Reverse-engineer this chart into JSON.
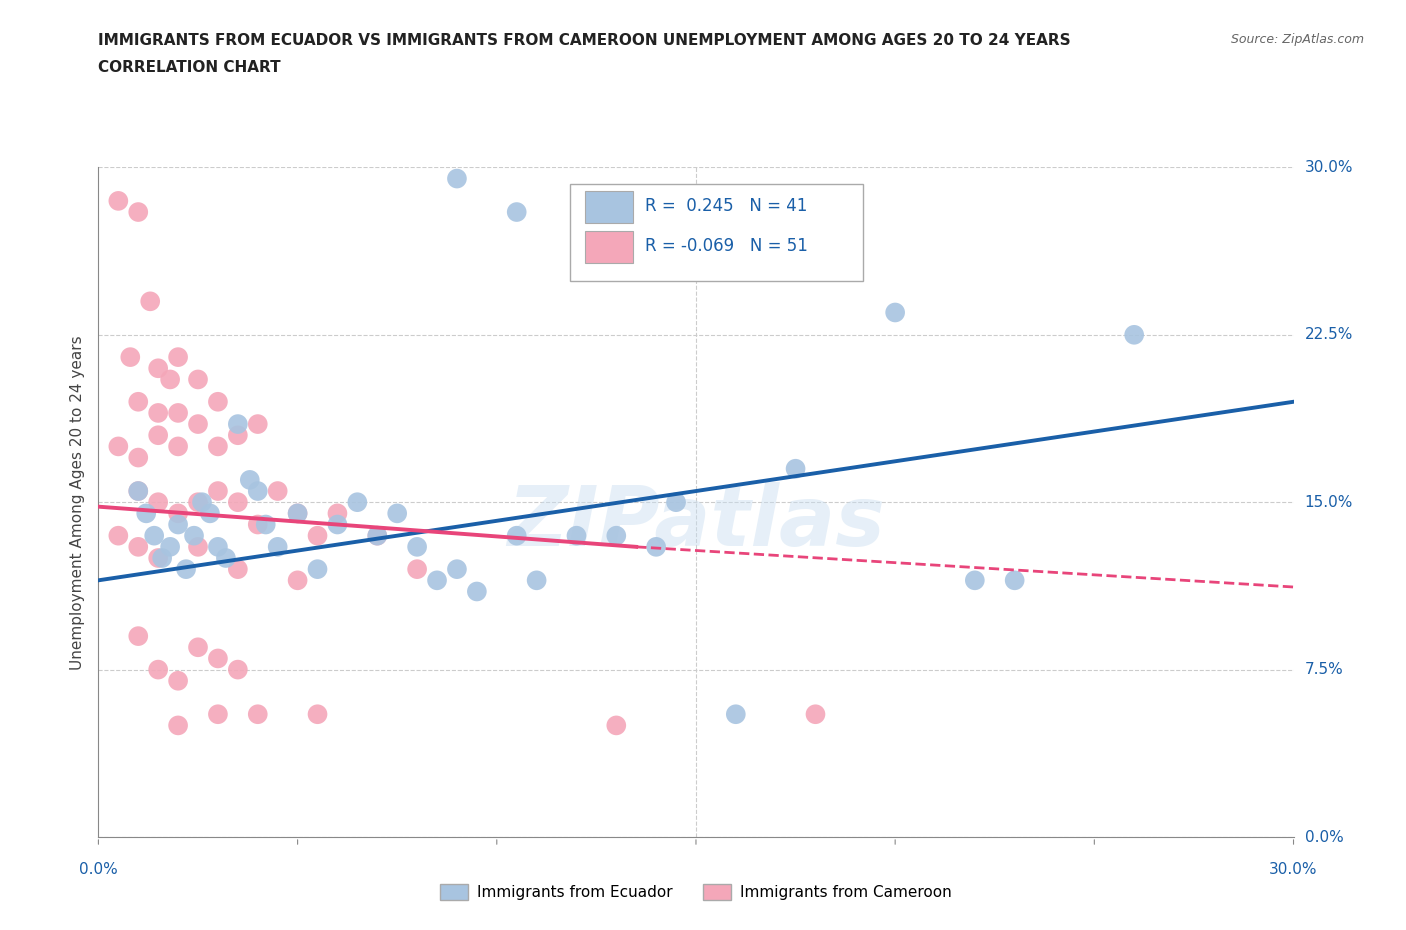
{
  "title_line1": "IMMIGRANTS FROM ECUADOR VS IMMIGRANTS FROM CAMEROON UNEMPLOYMENT AMONG AGES 20 TO 24 YEARS",
  "title_line2": "CORRELATION CHART",
  "source": "Source: ZipAtlas.com",
  "ylabel": "Unemployment Among Ages 20 to 24 years",
  "ytick_values": [
    0.0,
    7.5,
    15.0,
    22.5,
    30.0
  ],
  "xlim": [
    0.0,
    30.0
  ],
  "ylim": [
    0.0,
    30.0
  ],
  "watermark": "ZIPatlas",
  "legend_R_ecuador": "0.245",
  "legend_N_ecuador": "41",
  "legend_R_cameroon": "-0.069",
  "legend_N_cameroon": "51",
  "ecuador_color": "#a8c4e0",
  "cameroon_color": "#f4a7b9",
  "ecuador_line_color": "#1a5fa8",
  "cameroon_line_color": "#e8457a",
  "ecuador_scatter": [
    [
      1.0,
      15.5
    ],
    [
      1.2,
      14.5
    ],
    [
      1.4,
      13.5
    ],
    [
      1.6,
      12.5
    ],
    [
      1.8,
      13.0
    ],
    [
      2.0,
      14.0
    ],
    [
      2.2,
      12.0
    ],
    [
      2.4,
      13.5
    ],
    [
      2.6,
      15.0
    ],
    [
      2.8,
      14.5
    ],
    [
      3.0,
      13.0
    ],
    [
      3.2,
      12.5
    ],
    [
      3.5,
      18.5
    ],
    [
      3.8,
      16.0
    ],
    [
      4.0,
      15.5
    ],
    [
      4.2,
      14.0
    ],
    [
      4.5,
      13.0
    ],
    [
      5.0,
      14.5
    ],
    [
      5.5,
      12.0
    ],
    [
      6.0,
      14.0
    ],
    [
      6.5,
      15.0
    ],
    [
      7.0,
      13.5
    ],
    [
      7.5,
      14.5
    ],
    [
      8.0,
      13.0
    ],
    [
      8.5,
      11.5
    ],
    [
      9.0,
      12.0
    ],
    [
      9.5,
      11.0
    ],
    [
      10.5,
      13.5
    ],
    [
      11.0,
      11.5
    ],
    [
      12.0,
      13.5
    ],
    [
      13.0,
      13.5
    ],
    [
      14.0,
      13.0
    ],
    [
      14.5,
      15.0
    ],
    [
      17.5,
      16.5
    ],
    [
      20.0,
      23.5
    ],
    [
      22.0,
      11.5
    ],
    [
      23.0,
      11.5
    ],
    [
      26.0,
      22.5
    ],
    [
      9.0,
      29.5
    ],
    [
      10.5,
      28.0
    ],
    [
      16.0,
      5.5
    ]
  ],
  "cameroon_scatter": [
    [
      0.5,
      28.5
    ],
    [
      1.0,
      28.0
    ],
    [
      1.3,
      24.0
    ],
    [
      0.8,
      21.5
    ],
    [
      1.5,
      21.0
    ],
    [
      1.8,
      20.5
    ],
    [
      2.0,
      21.5
    ],
    [
      2.5,
      20.5
    ],
    [
      1.0,
      19.5
    ],
    [
      1.5,
      19.0
    ],
    [
      2.0,
      19.0
    ],
    [
      2.5,
      18.5
    ],
    [
      3.0,
      19.5
    ],
    [
      0.5,
      17.5
    ],
    [
      1.0,
      17.0
    ],
    [
      1.5,
      18.0
    ],
    [
      2.0,
      17.5
    ],
    [
      3.0,
      17.5
    ],
    [
      3.5,
      18.0
    ],
    [
      4.0,
      18.5
    ],
    [
      1.0,
      15.5
    ],
    [
      1.5,
      15.0
    ],
    [
      2.0,
      14.5
    ],
    [
      2.5,
      15.0
    ],
    [
      3.0,
      15.5
    ],
    [
      3.5,
      15.0
    ],
    [
      4.0,
      14.0
    ],
    [
      4.5,
      15.5
    ],
    [
      5.0,
      14.5
    ],
    [
      5.5,
      13.5
    ],
    [
      6.0,
      14.5
    ],
    [
      7.0,
      13.5
    ],
    [
      0.5,
      13.5
    ],
    [
      1.0,
      13.0
    ],
    [
      1.5,
      12.5
    ],
    [
      2.5,
      13.0
    ],
    [
      3.5,
      12.0
    ],
    [
      5.0,
      11.5
    ],
    [
      8.0,
      12.0
    ],
    [
      1.0,
      9.0
    ],
    [
      2.5,
      8.5
    ],
    [
      3.0,
      8.0
    ],
    [
      1.5,
      7.5
    ],
    [
      2.0,
      7.0
    ],
    [
      3.5,
      7.5
    ],
    [
      2.0,
      5.0
    ],
    [
      3.0,
      5.5
    ],
    [
      4.0,
      5.5
    ],
    [
      5.5,
      5.5
    ],
    [
      18.0,
      5.5
    ],
    [
      13.0,
      5.0
    ]
  ],
  "ecuador_trend": {
    "x_start": 0.0,
    "y_start": 11.5,
    "x_end": 30.0,
    "y_end": 19.5
  },
  "cameroon_trend_solid": {
    "x_start": 0.0,
    "y_start": 14.8,
    "x_end": 13.5,
    "y_end": 13.0
  },
  "cameroon_trend_dashed": {
    "x_start": 13.5,
    "y_start": 13.0,
    "x_end": 30.0,
    "y_end": 11.2
  }
}
